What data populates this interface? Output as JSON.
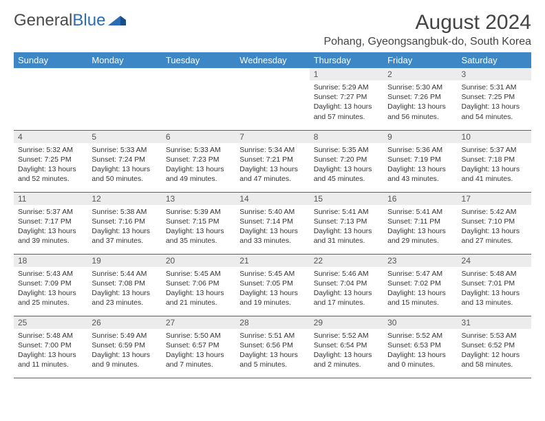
{
  "brand": {
    "part1": "General",
    "part2": "Blue"
  },
  "title": "August 2024",
  "location": "Pohang, Gyeongsangbuk-do, South Korea",
  "colors": {
    "header_bg": "#3d87c7",
    "header_text": "#ffffff",
    "daynum_bg": "#ececec",
    "row_border": "#2f6aa8",
    "brand_blue": "#2a6db5"
  },
  "weekdays": [
    "Sunday",
    "Monday",
    "Tuesday",
    "Wednesday",
    "Thursday",
    "Friday",
    "Saturday"
  ],
  "weeks": [
    [
      null,
      null,
      null,
      null,
      {
        "d": "1",
        "sr": "5:29 AM",
        "ss": "7:27 PM",
        "dl": "13 hours and 57 minutes."
      },
      {
        "d": "2",
        "sr": "5:30 AM",
        "ss": "7:26 PM",
        "dl": "13 hours and 56 minutes."
      },
      {
        "d": "3",
        "sr": "5:31 AM",
        "ss": "7:25 PM",
        "dl": "13 hours and 54 minutes."
      }
    ],
    [
      {
        "d": "4",
        "sr": "5:32 AM",
        "ss": "7:25 PM",
        "dl": "13 hours and 52 minutes."
      },
      {
        "d": "5",
        "sr": "5:33 AM",
        "ss": "7:24 PM",
        "dl": "13 hours and 50 minutes."
      },
      {
        "d": "6",
        "sr": "5:33 AM",
        "ss": "7:23 PM",
        "dl": "13 hours and 49 minutes."
      },
      {
        "d": "7",
        "sr": "5:34 AM",
        "ss": "7:21 PM",
        "dl": "13 hours and 47 minutes."
      },
      {
        "d": "8",
        "sr": "5:35 AM",
        "ss": "7:20 PM",
        "dl": "13 hours and 45 minutes."
      },
      {
        "d": "9",
        "sr": "5:36 AM",
        "ss": "7:19 PM",
        "dl": "13 hours and 43 minutes."
      },
      {
        "d": "10",
        "sr": "5:37 AM",
        "ss": "7:18 PM",
        "dl": "13 hours and 41 minutes."
      }
    ],
    [
      {
        "d": "11",
        "sr": "5:37 AM",
        "ss": "7:17 PM",
        "dl": "13 hours and 39 minutes."
      },
      {
        "d": "12",
        "sr": "5:38 AM",
        "ss": "7:16 PM",
        "dl": "13 hours and 37 minutes."
      },
      {
        "d": "13",
        "sr": "5:39 AM",
        "ss": "7:15 PM",
        "dl": "13 hours and 35 minutes."
      },
      {
        "d": "14",
        "sr": "5:40 AM",
        "ss": "7:14 PM",
        "dl": "13 hours and 33 minutes."
      },
      {
        "d": "15",
        "sr": "5:41 AM",
        "ss": "7:13 PM",
        "dl": "13 hours and 31 minutes."
      },
      {
        "d": "16",
        "sr": "5:41 AM",
        "ss": "7:11 PM",
        "dl": "13 hours and 29 minutes."
      },
      {
        "d": "17",
        "sr": "5:42 AM",
        "ss": "7:10 PM",
        "dl": "13 hours and 27 minutes."
      }
    ],
    [
      {
        "d": "18",
        "sr": "5:43 AM",
        "ss": "7:09 PM",
        "dl": "13 hours and 25 minutes."
      },
      {
        "d": "19",
        "sr": "5:44 AM",
        "ss": "7:08 PM",
        "dl": "13 hours and 23 minutes."
      },
      {
        "d": "20",
        "sr": "5:45 AM",
        "ss": "7:06 PM",
        "dl": "13 hours and 21 minutes."
      },
      {
        "d": "21",
        "sr": "5:45 AM",
        "ss": "7:05 PM",
        "dl": "13 hours and 19 minutes."
      },
      {
        "d": "22",
        "sr": "5:46 AM",
        "ss": "7:04 PM",
        "dl": "13 hours and 17 minutes."
      },
      {
        "d": "23",
        "sr": "5:47 AM",
        "ss": "7:02 PM",
        "dl": "13 hours and 15 minutes."
      },
      {
        "d": "24",
        "sr": "5:48 AM",
        "ss": "7:01 PM",
        "dl": "13 hours and 13 minutes."
      }
    ],
    [
      {
        "d": "25",
        "sr": "5:48 AM",
        "ss": "7:00 PM",
        "dl": "13 hours and 11 minutes."
      },
      {
        "d": "26",
        "sr": "5:49 AM",
        "ss": "6:59 PM",
        "dl": "13 hours and 9 minutes."
      },
      {
        "d": "27",
        "sr": "5:50 AM",
        "ss": "6:57 PM",
        "dl": "13 hours and 7 minutes."
      },
      {
        "d": "28",
        "sr": "5:51 AM",
        "ss": "6:56 PM",
        "dl": "13 hours and 5 minutes."
      },
      {
        "d": "29",
        "sr": "5:52 AM",
        "ss": "6:54 PM",
        "dl": "13 hours and 2 minutes."
      },
      {
        "d": "30",
        "sr": "5:52 AM",
        "ss": "6:53 PM",
        "dl": "13 hours and 0 minutes."
      },
      {
        "d": "31",
        "sr": "5:53 AM",
        "ss": "6:52 PM",
        "dl": "12 hours and 58 minutes."
      }
    ]
  ],
  "labels": {
    "sunrise": "Sunrise:",
    "sunset": "Sunset:",
    "daylight": "Daylight:"
  }
}
